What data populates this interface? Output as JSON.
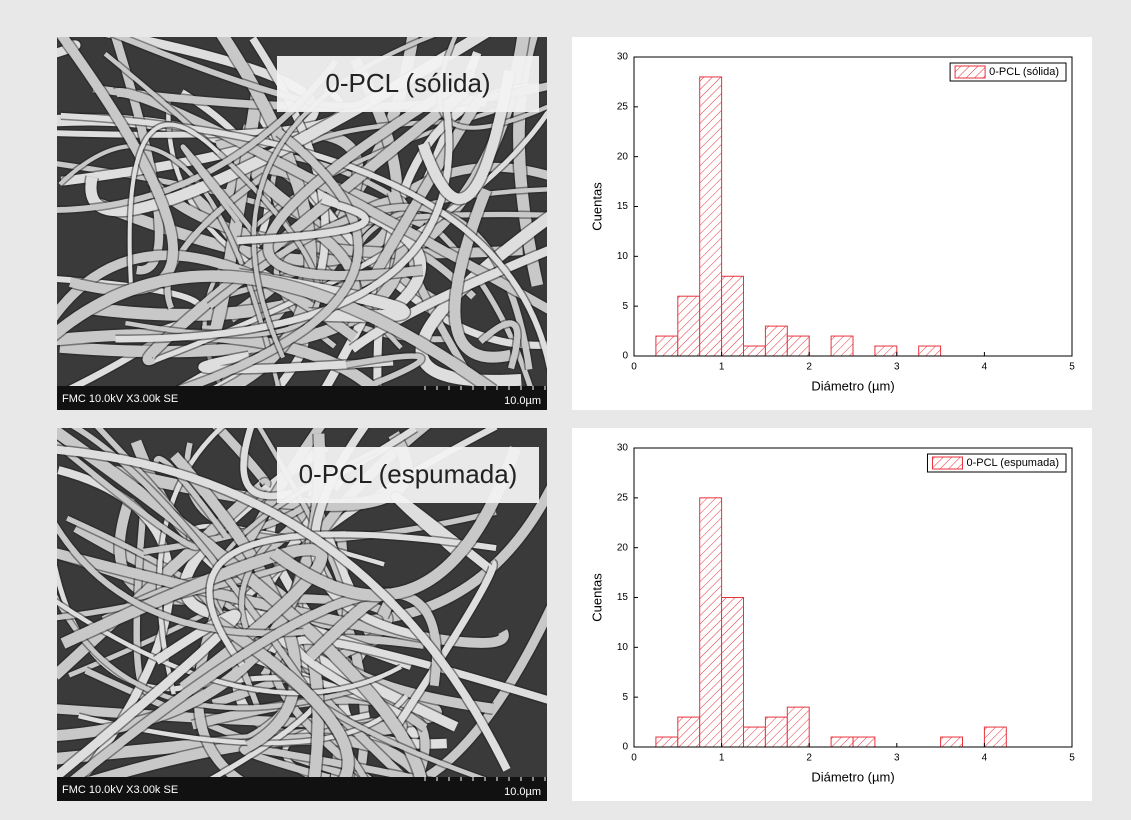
{
  "images": [
    {
      "label": "0-PCL (sólida)",
      "info": "FMC 10.0kV X3.00k SE",
      "scale": "10.0µm"
    },
    {
      "label": "0-PCL (espumada)",
      "info": "FMC 10.0kV X3.00k SE",
      "scale": "10.0µm"
    }
  ],
  "chart_data": [
    {
      "type": "histogram",
      "name": "0-PCL (sólida)",
      "color": "#e8323c",
      "bins": [
        0.25,
        0.5,
        0.75,
        1.0,
        1.25,
        1.5,
        1.75,
        2.0,
        2.25,
        2.5,
        2.75,
        3.0,
        3.25,
        3.5
      ],
      "values": [
        2,
        6,
        28,
        8,
        1,
        3,
        2,
        0,
        2,
        0,
        1,
        0,
        1
      ],
      "x_label": "Diámetro (µm)",
      "y_label": "Cuentas",
      "xlim": [
        0,
        5
      ],
      "ylim": [
        0,
        30
      ],
      "xticks": [
        0,
        1,
        2,
        3,
        4,
        5
      ],
      "yticks": [
        0,
        5,
        10,
        15,
        20,
        25,
        30
      ],
      "legend": "upper right"
    },
    {
      "type": "histogram",
      "name": "0-PCL (espumada)",
      "color": "#e8323c",
      "bins": [
        0.25,
        0.5,
        0.75,
        1.0,
        1.25,
        1.5,
        1.75,
        2.0,
        2.25,
        2.5,
        2.75,
        3.0,
        3.25,
        3.5,
        3.75,
        4.0,
        4.25
      ],
      "values": [
        1,
        3,
        25,
        15,
        2,
        3,
        4,
        0,
        1,
        1,
        0,
        0,
        0,
        1,
        0,
        2
      ],
      "x_label": "Diámetro (µm)",
      "y_label": "Cuentas",
      "xlim": [
        0,
        5
      ],
      "ylim": [
        0,
        30
      ],
      "xticks": [
        0,
        1,
        2,
        3,
        4,
        5
      ],
      "yticks": [
        0,
        5,
        10,
        15,
        20,
        25,
        30
      ],
      "legend": "upper right"
    }
  ]
}
